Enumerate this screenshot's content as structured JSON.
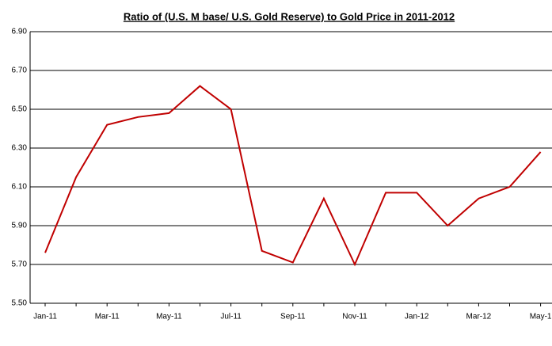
{
  "chart_data": {
    "type": "line",
    "title": "Ratio of (U.S. M base/ U.S. Gold Reserve) to Gold Price in 2011-2012",
    "categories": [
      "Jan-11",
      null,
      "Mar-11",
      null,
      "May-11",
      null,
      "Jul-11",
      null,
      "Sep-11",
      null,
      "Nov-11",
      null,
      "Jan-12",
      null,
      "Mar-12",
      null,
      "May-1"
    ],
    "series": [
      {
        "color": "#c00000",
        "values": [
          5.76,
          6.15,
          6.42,
          6.46,
          6.48,
          6.62,
          6.5,
          5.77,
          5.71,
          6.04,
          5.7,
          6.07,
          6.07,
          5.9,
          6.04,
          6.1,
          6.28
        ]
      }
    ],
    "ylim": [
      5.5,
      6.9
    ],
    "yticks": [
      {
        "value": 5.5,
        "label": "5.50"
      },
      {
        "value": 5.7,
        "label": "5.70"
      },
      {
        "value": 5.9,
        "label": "5.90"
      },
      {
        "value": 6.1,
        "label": "6.10"
      },
      {
        "value": 6.3,
        "label": "6.30"
      },
      {
        "value": 6.5,
        "label": "6.50"
      },
      {
        "value": 6.7,
        "label": "6.70"
      },
      {
        "value": 6.9,
        "label": "6.90"
      }
    ],
    "grid": true
  }
}
